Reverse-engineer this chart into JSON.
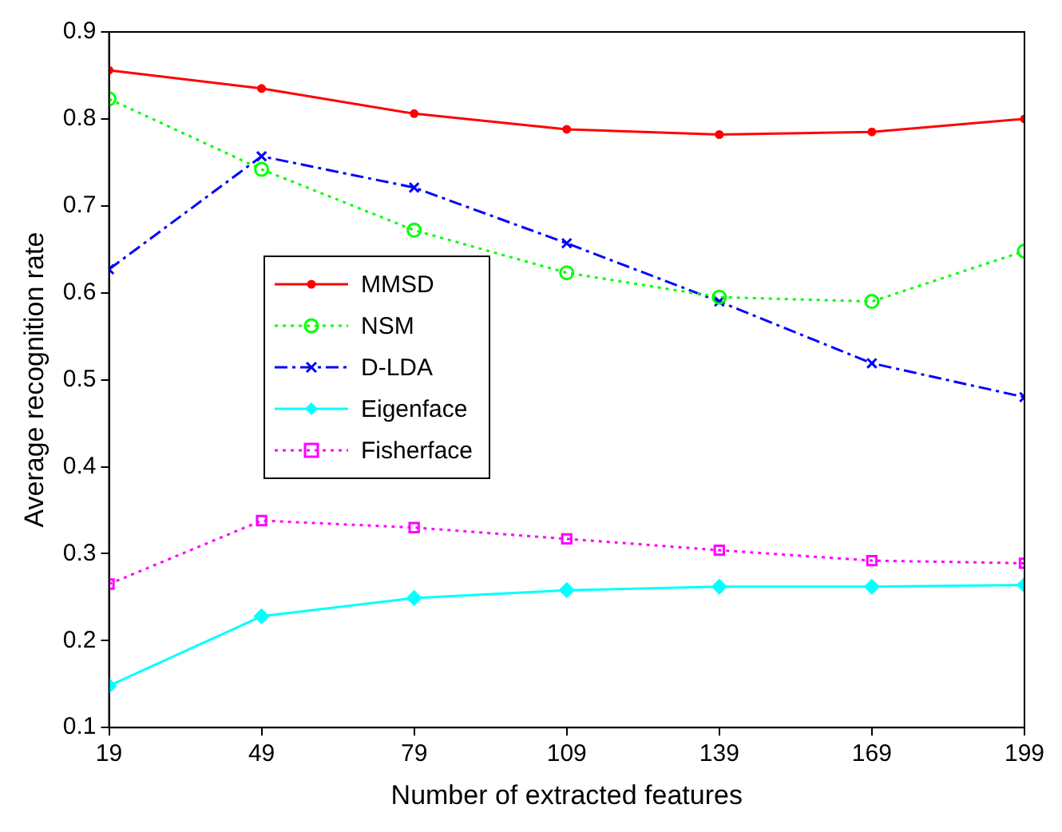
{
  "chart_data": {
    "type": "line",
    "xlabel": "Number of extracted features",
    "ylabel": "Average recognition rate",
    "x": [
      19,
      49,
      79,
      109,
      139,
      169,
      199
    ],
    "xlim": [
      19,
      199
    ],
    "xticks": [
      19,
      49,
      79,
      109,
      139,
      169,
      199
    ],
    "ylim": [
      0.1,
      0.9
    ],
    "yticks": [
      0.1,
      0.2,
      0.3,
      0.4,
      0.5,
      0.6,
      0.7,
      0.8,
      0.9
    ],
    "grid": false,
    "legend": "left",
    "series": [
      {
        "name": "MMSD",
        "color": "#ff0000",
        "marker": "circle",
        "line_style": "solid",
        "values": [
          0.856,
          0.835,
          0.806,
          0.788,
          0.782,
          0.785,
          0.8
        ]
      },
      {
        "name": "NSM",
        "color": "#00ff00",
        "marker": "circle",
        "line_style": "dotted",
        "values": [
          0.823,
          0.742,
          0.672,
          0.623,
          0.595,
          0.59,
          0.648
        ]
      },
      {
        "name": "D-LDA",
        "color": "#0000ff",
        "marker": "cross",
        "line_style": "dashed",
        "values": [
          0.627,
          0.757,
          0.721,
          0.657,
          0.59,
          0.519,
          0.48
        ]
      },
      {
        "name": "Eigenface",
        "color": "#00ffff",
        "marker": "diamond",
        "line_style": "solid",
        "values": [
          0.148,
          0.228,
          0.249,
          0.258,
          0.262,
          0.262,
          0.264
        ]
      },
      {
        "name": "Fisherface",
        "color": "#ff00ff",
        "marker": "square",
        "line_style": "dotted",
        "values": [
          0.265,
          0.338,
          0.33,
          0.317,
          0.304,
          0.292,
          0.289
        ]
      }
    ]
  }
}
